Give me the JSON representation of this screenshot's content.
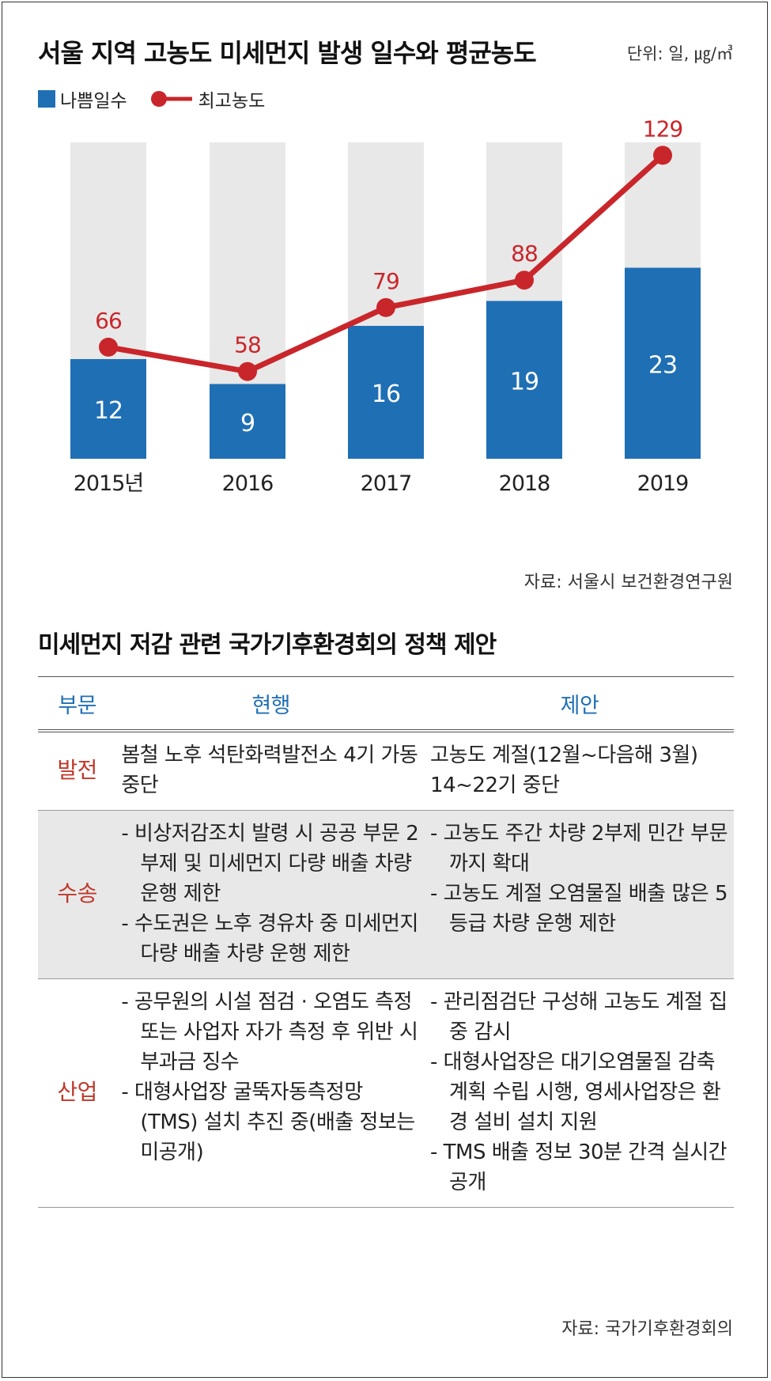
{
  "header": {
    "title": "서울 지역 고농도 미세먼지 발생 일수와 평균농도",
    "unit": "단위: 일, ㎍/㎥"
  },
  "legend": {
    "bar_label": "나쁨일수",
    "line_label": "최고농도"
  },
  "colors": {
    "bar": "#1f6fb5",
    "bar_background": "#e8e8e8",
    "line": "#c9262b",
    "sector_text": "#c0392b",
    "header_text": "#1f6fb5"
  },
  "chart_data": {
    "type": "bar",
    "categories": [
      "2015년",
      "2016",
      "2017",
      "2018",
      "2019"
    ],
    "series": [
      {
        "name": "나쁨일수",
        "type": "bar",
        "values": [
          12,
          9,
          16,
          19,
          23
        ]
      },
      {
        "name": "최고농도",
        "type": "line",
        "values": [
          66,
          58,
          79,
          88,
          129
        ]
      }
    ]
  },
  "chart_source": "자료: 서울시 보건환경연구원",
  "table": {
    "title": "미세먼지 저감 관련 국가기후환경회의 정책 제안",
    "headers": [
      "부문",
      "현행",
      "제안"
    ],
    "rows": [
      {
        "sector": "발전",
        "current": [
          "봄철 노후 석탄화력발전소 4기 가동 중단"
        ],
        "proposal": [
          "고농도 계절(12월~다음해 3월) 14~22기 중단"
        ],
        "bulleted": false
      },
      {
        "sector": "수송",
        "current": [
          "- 비상저감조치 발령 시 공공 부문 2부제 및 미세먼지 다량 배출 차량운행 제한",
          "- 수도권은 노후 경유차 중 미세먼지 다량 배출 차량 운행 제한"
        ],
        "proposal": [
          "- 고농도 주간 차량 2부제 민간 부문까지 확대",
          "- 고농도 계절 오염물질 배출 많은 5등급 차량 운행 제한"
        ],
        "bulleted": true
      },
      {
        "sector": "산업",
        "current": [
          "- 공무원의 시설 점검 · 오염도 측정 또는 사업자 자가 측정 후 위반 시 부과금 징수",
          "- 대형사업장 굴뚝자동측정망 (TMS) 설치 추진 중(배출 정보는 미공개)"
        ],
        "proposal": [
          "- 관리점검단 구성해 고농도 계절 집중 감시",
          "- 대형사업장은 대기오염물질 감축계획 수립 시행, 영세사업장은 환경 설비 설치 지원",
          "- TMS 배출 정보 30분 간격 실시간 공개"
        ],
        "bulleted": true
      }
    ]
  },
  "table_source": "자료: 국가기후환경회의"
}
